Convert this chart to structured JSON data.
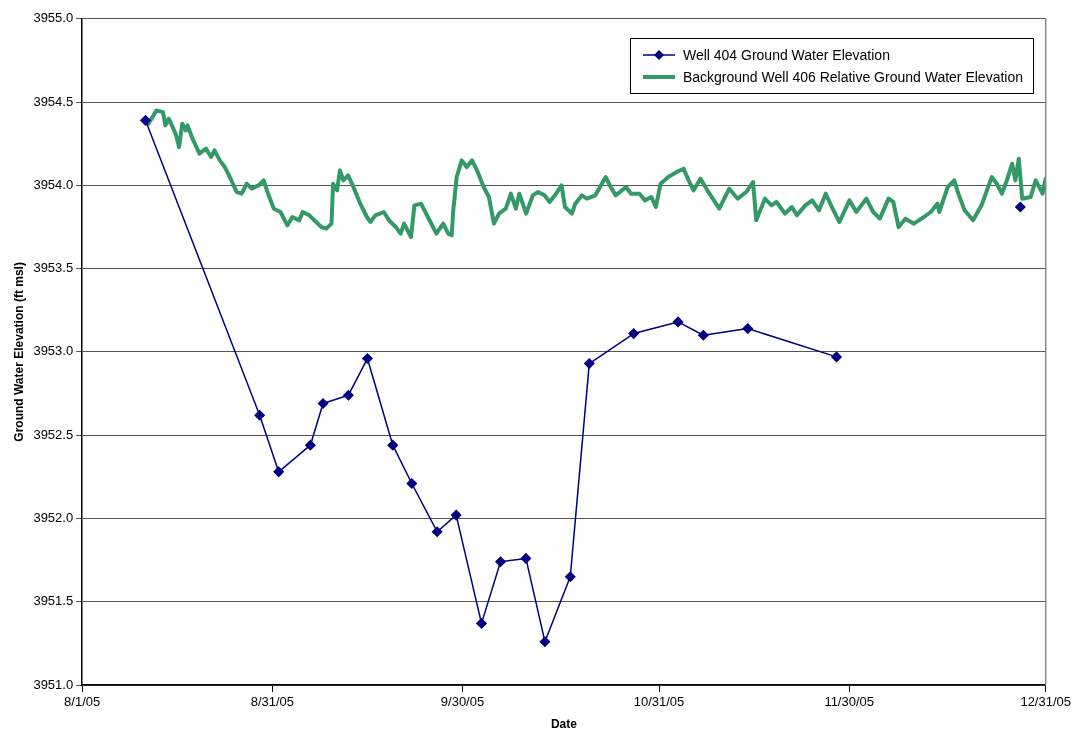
{
  "chart_data": {
    "type": "line",
    "xlabel": "Date",
    "ylabel": "Ground Water Elevation (ft msl)",
    "xlim": [
      "2005-08-01",
      "2005-12-31"
    ],
    "xticks": [
      {
        "value": "2005-08-01",
        "label": "8/1/05"
      },
      {
        "value": "2005-08-31",
        "label": "8/31/05"
      },
      {
        "value": "2005-09-30",
        "label": "9/30/05"
      },
      {
        "value": "2005-10-31",
        "label": "10/31/05"
      },
      {
        "value": "2005-11-30",
        "label": "11/30/05"
      },
      {
        "value": "2005-12-31",
        "label": "12/31/05"
      }
    ],
    "ylim": [
      3951,
      3955
    ],
    "yticks": [
      {
        "value": 3951,
        "label": "3951.0"
      },
      {
        "value": 3951.5,
        "label": "3951.5"
      },
      {
        "value": 3952,
        "label": "3952.0"
      },
      {
        "value": 3952.5,
        "label": "3952.5"
      },
      {
        "value": 3953,
        "label": "3953.0"
      },
      {
        "value": 3953.5,
        "label": "3953.5"
      },
      {
        "value": 3954,
        "label": "3954.0"
      },
      {
        "value": 3954.5,
        "label": "3954.5"
      },
      {
        "value": 3955,
        "label": "3955.0"
      }
    ],
    "grid": "y",
    "legend": "top right",
    "series": [
      {
        "name": "Well 404 Ground Water Elevation",
        "color": "#000080",
        "marker": "diamond",
        "line_style": "solid",
        "x": [
          "2005-08-11",
          "2005-08-29",
          "2005-09-01",
          "2005-09-06",
          "2005-09-08",
          "2005-09-12",
          "2005-09-15",
          "2005-09-19",
          "2005-09-22",
          "2005-09-26",
          "2005-09-29",
          "2005-10-03",
          "2005-10-06",
          "2005-10-10",
          "2005-10-13",
          "2005-10-17",
          "2005-10-20",
          "2005-10-27",
          "2005-11-03",
          "2005-11-07",
          "2005-11-14",
          "2005-11-28",
          "2005-12-12",
          "2005-12-27"
        ],
        "values": [
          3954.39,
          3952.62,
          3952.28,
          3952.44,
          3952.69,
          3952.74,
          3952.96,
          3952.44,
          3952.21,
          3951.92,
          3952.02,
          3951.37,
          3951.74,
          3951.76,
          3951.26,
          3951.65,
          3952.93,
          3953.11,
          3953.18,
          3953.1,
          3953.14,
          3952.97,
          null,
          3953.87
        ]
      },
      {
        "name": "Background Well 406 Relative Ground Water Elevation",
        "color": "#339966",
        "marker": "none",
        "line_style": "solid",
        "x": [
          "2005-08-11T11:00",
          "2005-08-12T17:00",
          "2005-08-13T18:00",
          "2005-08-14T03:00",
          "2005-08-14T16:00",
          "2005-08-15T18:00",
          "2005-08-16T07:00",
          "2005-08-16T19:00",
          "2005-08-17T08:00",
          "2005-08-17T15:00",
          "2005-08-18T10:00",
          "2005-08-19T12:00",
          "2005-08-20T13:00",
          "2005-08-21T08:00",
          "2005-08-21T21:00",
          "2005-08-22T17:00",
          "2005-08-23T12:00",
          "2005-08-24T07:00",
          "2005-08-25T09:00",
          "2005-08-26T04:00",
          "2005-08-26T23:00",
          "2005-08-27T18:00",
          "2005-08-28T20:00",
          "2005-08-29T15:00",
          "2005-08-30T10:00",
          "2005-08-31T06:00",
          "2005-09-01T07:00",
          "2005-09-02T09:00",
          "2005-09-03T04:00",
          "2005-09-04T06:00",
          "2005-09-04T19:00",
          "2005-09-05T20:00",
          "2005-09-06T22:00",
          "2005-09-07T17:00",
          "2005-09-08T12:00",
          "2005-09-09T08:00",
          "2005-09-09T14:00",
          "2005-09-10T05:00",
          "2005-09-10T16:00",
          "2005-09-11T05:00",
          "2005-09-11T23:00",
          "2005-09-12T19:00",
          "2005-09-13T21:00",
          "2005-09-14T22:00",
          "2005-09-15T11:00",
          "2005-09-16T06:00",
          "2005-09-17T14:00",
          "2005-09-18T10:00",
          "2005-09-19T11:00",
          "2005-09-20T06:00",
          "2005-09-20T19:00",
          "2005-09-21T21:00",
          "2005-09-22T10:00",
          "2005-09-23T11:00",
          "2005-09-24T13:00",
          "2005-09-25T21:00",
          "2005-09-26T23:00",
          "2005-09-27T18:00",
          "2005-09-28T07:00",
          "2005-09-28T13:00",
          "2005-09-29T02:00",
          "2005-09-29T21:00",
          "2005-09-30T16:00",
          "2005-10-01T12:00",
          "2005-10-02T07:00",
          "2005-10-03T08:00",
          "2005-10-04T04:00",
          "2005-10-04T23:00",
          "2005-10-05T18:00",
          "2005-10-06T20:00",
          "2005-10-07T15:00",
          "2005-10-08T10:00",
          "2005-10-08T23:00",
          "2005-10-10T01:00",
          "2005-10-11T02:00",
          "2005-10-11T22:00",
          "2005-10-12T23:00",
          "2005-10-13T18:00",
          "2005-10-14T14:00",
          "2005-10-15T15:00",
          "2005-10-16T04:00",
          "2005-10-17T06:00",
          "2005-10-17T19:00",
          "2005-10-18T20:00",
          "2005-10-19T15:00",
          "2005-10-20T23:00",
          "2005-10-22T14:00",
          "2005-10-23T09:00",
          "2005-10-24T04:00",
          "2005-10-25T19:00",
          "2005-10-26T14:00",
          "2005-10-27T22:00",
          "2005-10-28T18:00",
          "2005-10-29T19:00",
          "2005-10-30T12:00",
          "2005-10-31T06:00",
          "2005-11-01T11:00",
          "2005-11-02T19:00",
          "2005-11-03T21:00",
          "2005-11-04T16:00",
          "2005-11-05T11:00",
          "2005-11-06T13:00",
          "2005-11-07T15:00",
          "2005-11-09T12:00",
          "2005-11-11T02:00",
          "2005-11-12T10:00",
          "2005-11-13T18:00",
          "2005-11-14T20:00",
          "2005-11-15T08:00",
          "2005-11-16T17:00",
          "2005-11-17T18:00",
          "2005-11-18T13:00",
          "2005-11-19T21:00",
          "2005-11-20T23:00",
          "2005-11-21T18:00",
          "2005-11-23T02:00",
          "2005-11-24T04:00",
          "2005-11-25T06:00",
          "2005-11-26T07:00",
          "2005-11-27T09:00",
          "2005-11-28T11:00",
          "2005-11-30T01:00",
          "2005-12-01T03:00",
          "2005-12-02T17:00",
          "2005-12-03T19:00",
          "2005-12-04T20:00",
          "2005-12-06T05:00",
          "2005-12-06T23:00",
          "2005-12-07T19:00",
          "2005-12-08T21:00",
          "2005-12-10T05:00",
          "2005-12-11T19:00",
          "2005-12-12T21:00",
          "2005-12-13T22:00",
          "2005-12-14T05:00",
          "2005-12-15T13:00",
          "2005-12-16T14:00",
          "2005-12-17T03:00",
          "2005-12-18T05:00",
          "2005-12-19T13:00",
          "2005-12-20T21:00",
          "2005-12-22T12:00",
          "2005-12-23T07:00",
          "2005-12-24T02:00",
          "2005-12-24T21:00",
          "2005-12-25T17:00",
          "2005-12-26T05:00",
          "2005-12-26T18:00",
          "2005-12-27T07:00",
          "2005-12-28T15:00",
          "2005-12-29T10:00",
          "2005-12-30T12:00",
          "2005-12-31T00:00"
        ],
        "values": [
          3954.37,
          3954.45,
          3954.44,
          3954.36,
          3954.4,
          3954.31,
          3954.23,
          3954.37,
          3954.33,
          3954.36,
          3954.28,
          3954.19,
          3954.22,
          3954.17,
          3954.21,
          3954.15,
          3954.11,
          3954.05,
          3953.96,
          3953.95,
          3954.01,
          3953.98,
          3954.0,
          3954.03,
          3953.94,
          3953.86,
          3953.84,
          3953.76,
          3953.81,
          3953.79,
          3953.84,
          3953.82,
          3953.78,
          3953.75,
          3953.74,
          3953.77,
          3954.01,
          3953.97,
          3954.09,
          3954.03,
          3954.06,
          3953.99,
          3953.89,
          3953.81,
          3953.78,
          3953.82,
          3953.84,
          3953.79,
          3953.75,
          3953.71,
          3953.77,
          3953.69,
          3953.88,
          3953.89,
          3953.81,
          3953.71,
          3953.77,
          3953.71,
          3953.7,
          3953.85,
          3954.05,
          3954.15,
          3954.11,
          3954.15,
          3954.09,
          3953.99,
          3953.93,
          3953.77,
          3953.83,
          3953.86,
          3953.95,
          3953.86,
          3953.95,
          3953.83,
          3953.94,
          3953.96,
          3953.94,
          3953.9,
          3953.94,
          3954.0,
          3953.87,
          3953.83,
          3953.89,
          3953.94,
          3953.92,
          3953.94,
          3954.05,
          3953.99,
          3953.94,
          3953.99,
          3953.95,
          3953.95,
          3953.91,
          3953.93,
          3953.87,
          3954.01,
          3954.05,
          3954.08,
          3954.1,
          3954.03,
          3953.97,
          3954.04,
          3953.97,
          3953.86,
          3953.98,
          3953.92,
          3953.96,
          3954.02,
          3953.79,
          3953.92,
          3953.88,
          3953.9,
          3953.83,
          3953.87,
          3953.82,
          3953.88,
          3953.91,
          3953.85,
          3953.95,
          3953.86,
          3953.78,
          3953.91,
          3953.84,
          3953.92,
          3953.84,
          3953.8,
          3953.92,
          3953.9,
          3953.75,
          3953.8,
          3953.77,
          3953.81,
          3953.84,
          3953.89,
          3953.84,
          3953.99,
          3954.03,
          3953.96,
          3953.85,
          3953.79,
          3953.88,
          3954.05,
          3954.01,
          3953.95,
          3954.03,
          3954.13,
          3954.03,
          3954.16,
          3953.92,
          3953.93,
          3954.03,
          3953.95,
          3954.04
        ]
      }
    ]
  }
}
